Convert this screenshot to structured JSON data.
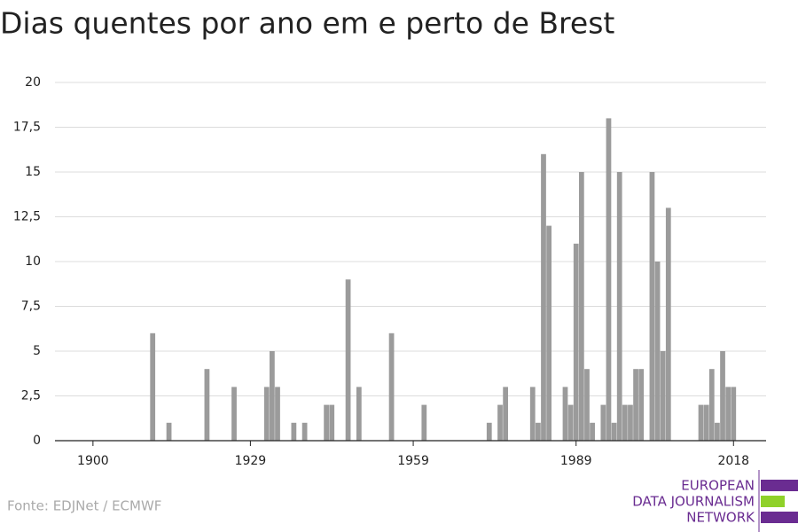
{
  "chart_data": {
    "type": "bar",
    "title": "Dias quentes por ano em e perto de Brest",
    "source": "Fonte: EDJNet / ECMWF",
    "logo": [
      "EUROPEAN",
      "DATA JOURNALISM",
      "NETWORK"
    ],
    "color": "#9b9b9b",
    "grid": true,
    "x": [
      1911,
      1914,
      1921,
      1926,
      1932,
      1933,
      1934,
      1937,
      1939,
      1943,
      1944,
      1947,
      1949,
      1955,
      1961,
      1973,
      1975,
      1976,
      1981,
      1982,
      1983,
      1984,
      1987,
      1988,
      1989,
      1990,
      1991,
      1992,
      1994,
      1995,
      1996,
      1997,
      1998,
      1999,
      2000,
      2001,
      2003,
      2004,
      2005,
      2006,
      2012,
      2013,
      2014,
      2015,
      2016,
      2017,
      2018
    ],
    "values": [
      6,
      1,
      4,
      3,
      3,
      5,
      3,
      1,
      1,
      2,
      2,
      9,
      3,
      6,
      2,
      1,
      2,
      3,
      3,
      1,
      16,
      12,
      3,
      2,
      11,
      15,
      4,
      1,
      2,
      18,
      1,
      15,
      2,
      2,
      4,
      4,
      15,
      10,
      5,
      13,
      2,
      2,
      4,
      1,
      5,
      3,
      3
    ],
    "xlim": [
      1893,
      2024
    ],
    "xticks": [
      1900,
      1929,
      1959,
      1989,
      2018
    ],
    "ylim": [
      0,
      20
    ],
    "yticks": [
      0,
      {
        "value": 2.5,
        "label": "2,5"
      },
      5,
      {
        "value": 7.5,
        "label": "7,5"
      },
      10,
      {
        "value": 12.5,
        "label": "12,5"
      },
      15,
      {
        "value": 17.5,
        "label": "17,5"
      },
      20
    ]
  }
}
